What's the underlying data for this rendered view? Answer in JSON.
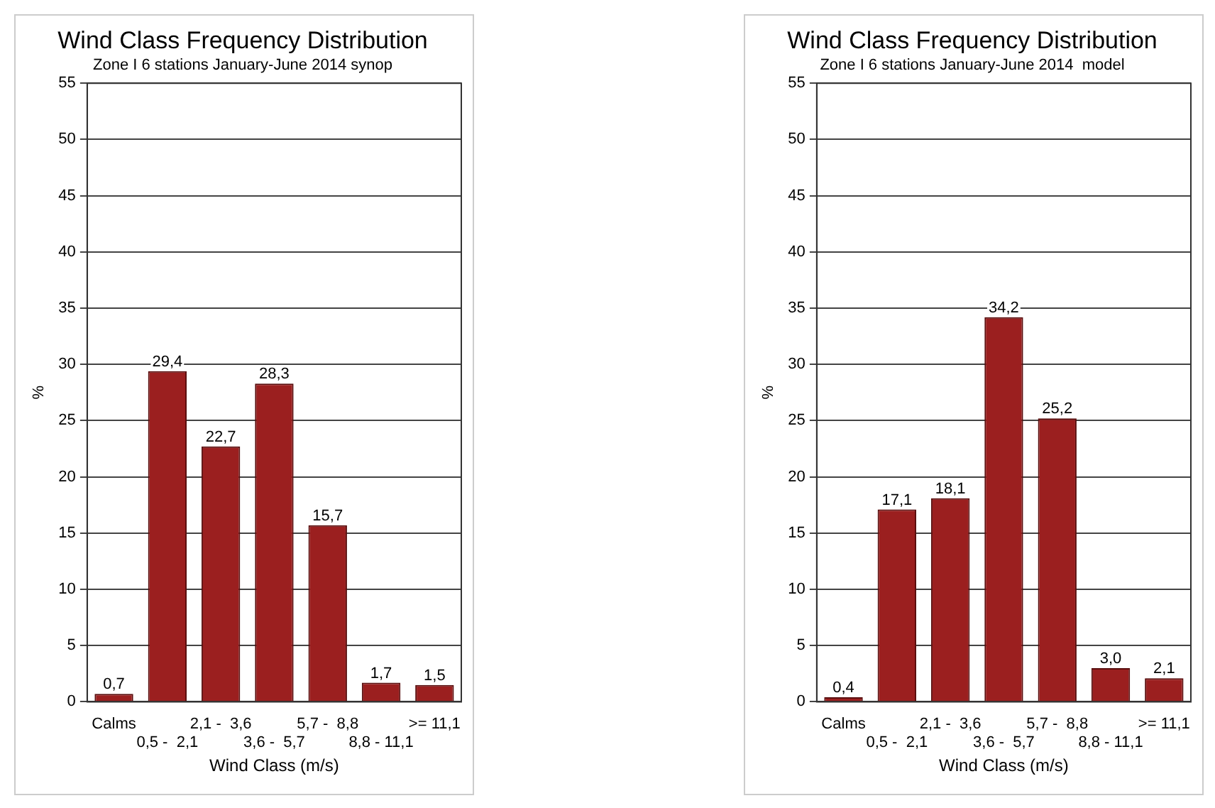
{
  "chart_data": [
    {
      "type": "bar",
      "title": "Wind Class Frequency Distribution",
      "subtitle": "Zone I 6 stations January-June 2014 synop",
      "xlabel": "Wind Class (m/s)",
      "ylabel": "%",
      "categories": [
        "Calms",
        "0,5 -  2,1",
        "2,1 -  3,6",
        "3,6 -  5,7",
        "5,7 -  8,8",
        "8,8 - 11,1",
        ">= 11,1"
      ],
      "values": [
        0.7,
        29.4,
        22.7,
        28.3,
        15.7,
        1.7,
        1.5
      ],
      "value_labels": [
        "0,7",
        "29,4",
        "22,7",
        "28,3",
        "15,7",
        "1,7",
        "1,5"
      ],
      "color": "#9b1f1f",
      "ylim": [
        0,
        55
      ],
      "yticks": [
        0,
        5,
        10,
        15,
        20,
        25,
        30,
        35,
        40,
        45,
        50,
        55
      ],
      "grid": "y",
      "legend": false
    },
    {
      "type": "bar",
      "title": "Wind Class Frequency Distribution",
      "subtitle": "Zone I 6 stations January-June 2014  model",
      "xlabel": "Wind Class (m/s)",
      "ylabel": "%",
      "categories": [
        "Calms",
        "0,5 -  2,1",
        "2,1 -  3,6",
        "3,6 -  5,7",
        "5,7 -  8,8",
        "8,8 - 11,1",
        ">= 11,1"
      ],
      "values": [
        0.4,
        17.1,
        18.1,
        34.2,
        25.2,
        3.0,
        2.1
      ],
      "value_labels": [
        "0,4",
        "17,1",
        "18,1",
        "34,2",
        "25,2",
        "3,0",
        "2,1"
      ],
      "color": "#9b1f1f",
      "ylim": [
        0,
        55
      ],
      "yticks": [
        0,
        5,
        10,
        15,
        20,
        25,
        30,
        35,
        40,
        45,
        50,
        55
      ],
      "grid": "y",
      "legend": false
    }
  ]
}
